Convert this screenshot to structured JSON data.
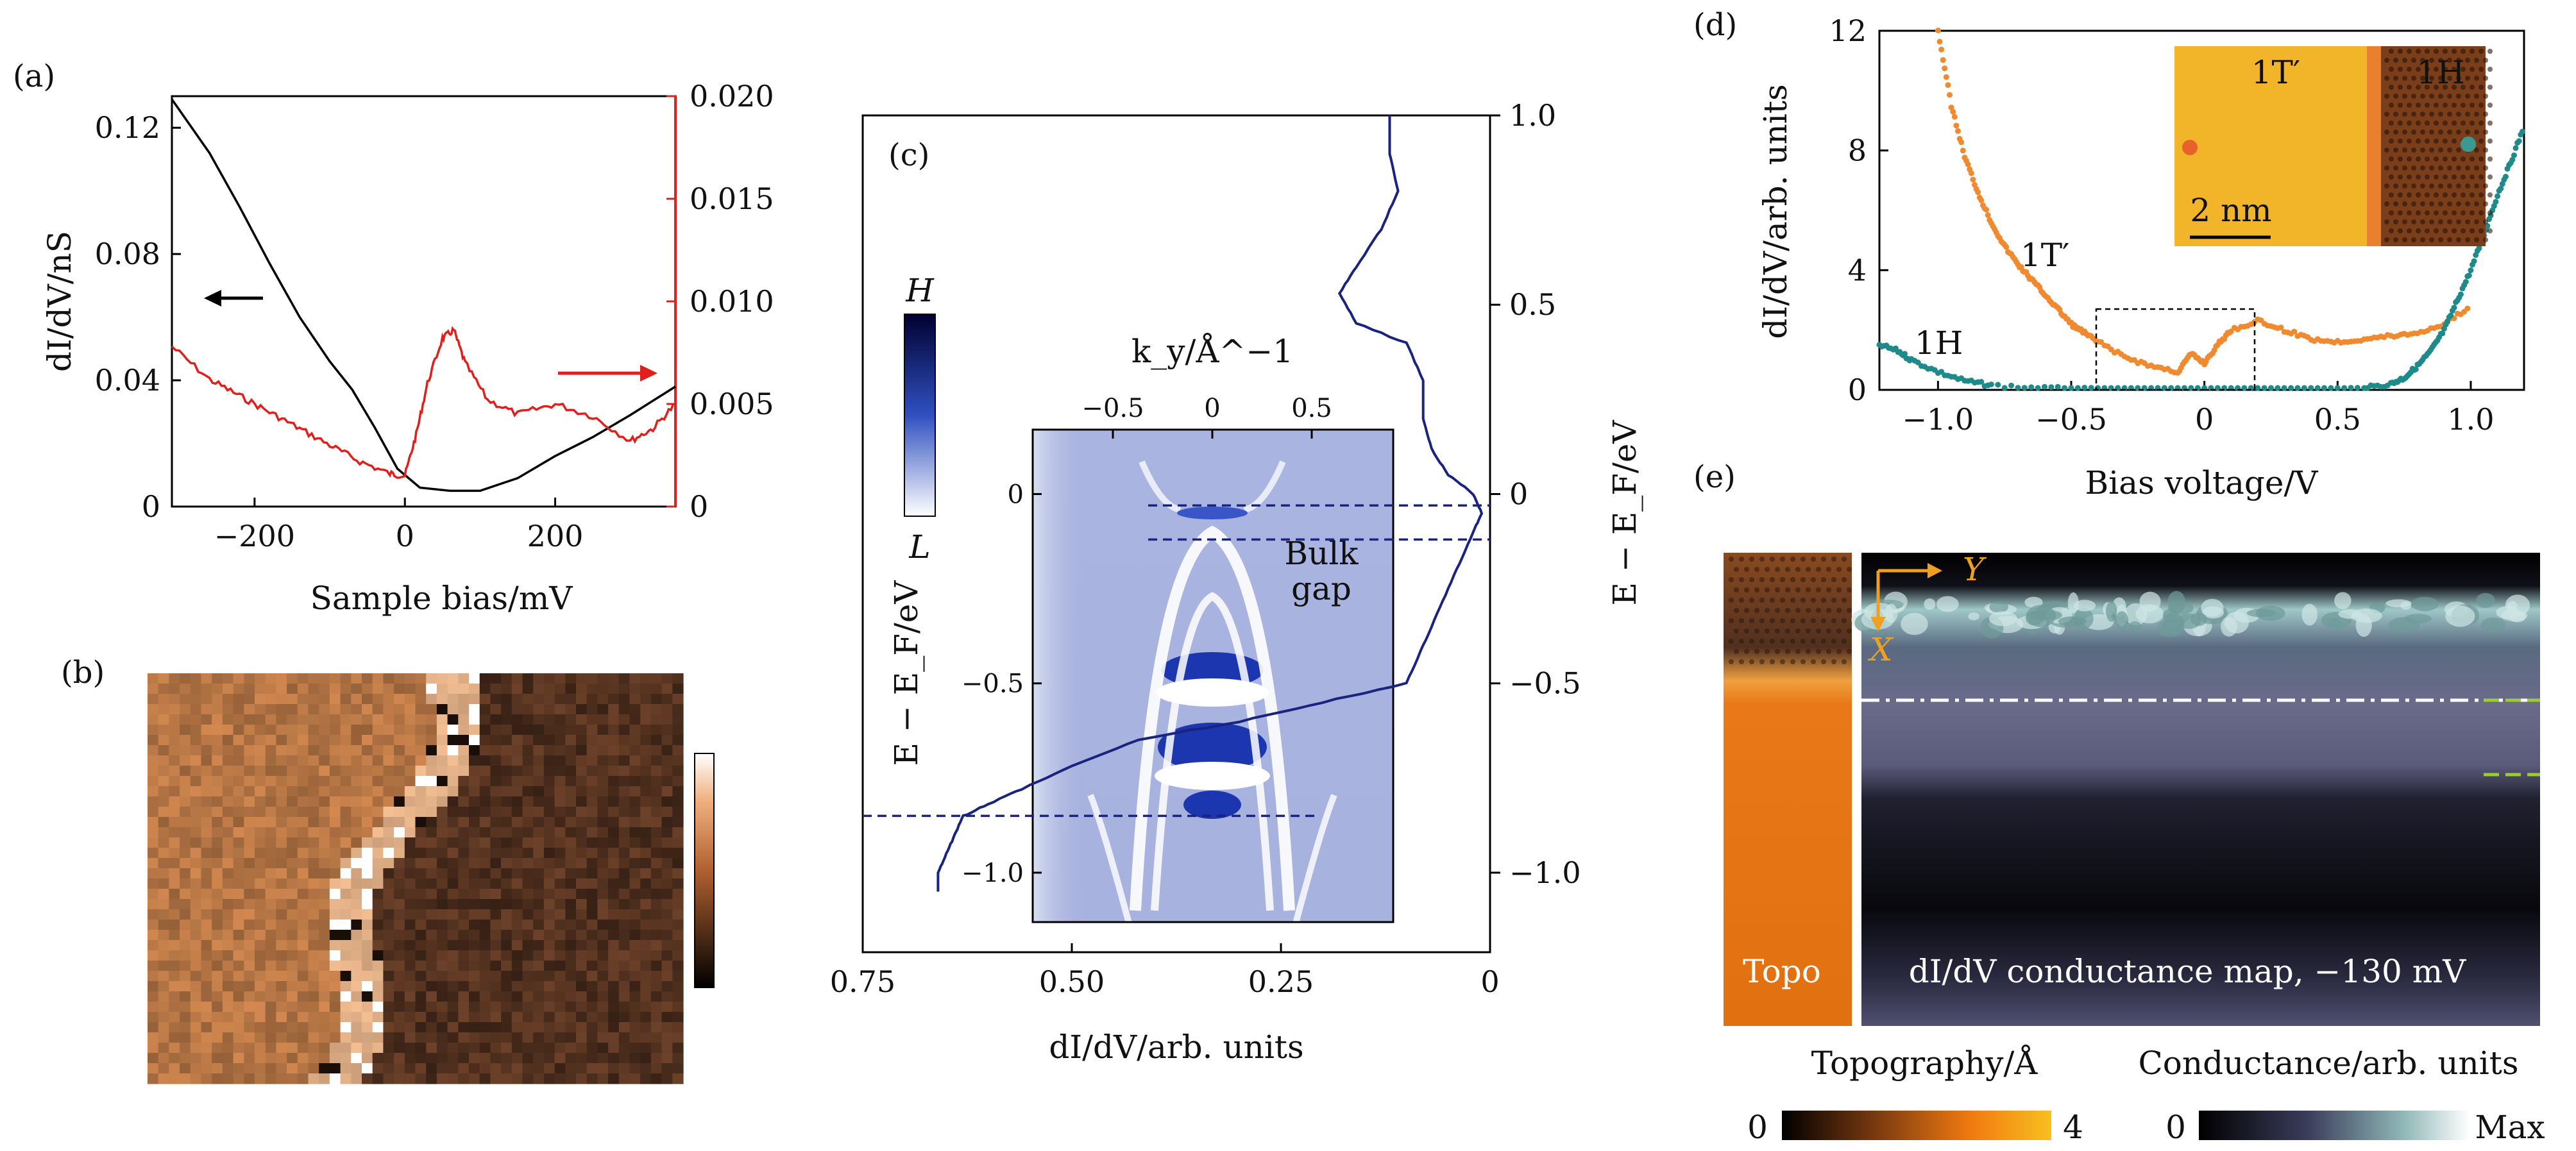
{
  "panels": {
    "a": "(a)",
    "b": "(b)",
    "c": "(c)",
    "d": "(d)",
    "e": "(e)"
  },
  "chart_data": [
    {
      "panel": "a",
      "type": "line",
      "xlabel": "Sample bias/mV",
      "ylabel_left": "dI/dV/nS",
      "xlim": [
        -310,
        360
      ],
      "ylim_left": [
        0,
        0.13
      ],
      "ylim_right": [
        0,
        0.02
      ],
      "xticks": [
        -200,
        0,
        200
      ],
      "yticks_left": [
        0,
        0.04,
        0.08,
        0.12
      ],
      "yticks_right": [
        0,
        0.005,
        0.01,
        0.015,
        0.02
      ],
      "xtick_labels": [
        "−200",
        "0",
        "200"
      ],
      "ytick_labels_left": [
        "0",
        "0.04",
        "0.08",
        "0.12"
      ],
      "ytick_labels_right": [
        "0",
        "0.005",
        "0.010",
        "0.015",
        "0.020"
      ],
      "series": [
        {
          "axis": "left",
          "color": "#000000",
          "x": [
            -310,
            -260,
            -220,
            -180,
            -140,
            -100,
            -70,
            -40,
            -10,
            20,
            60,
            100,
            150,
            200,
            250,
            300,
            360
          ],
          "y": [
            0.129,
            0.112,
            0.095,
            0.077,
            0.06,
            0.046,
            0.037,
            0.025,
            0.012,
            0.006,
            0.005,
            0.005,
            0.009,
            0.016,
            0.022,
            0.029,
            0.038
          ]
        },
        {
          "axis": "right",
          "color": "#e0201c",
          "x": [
            -310,
            -260,
            -220,
            -180,
            -140,
            -100,
            -60,
            -20,
            0,
            15,
            30,
            50,
            65,
            80,
            110,
            150,
            200,
            250,
            300,
            330,
            360
          ],
          "y": [
            0.0078,
            0.0062,
            0.0054,
            0.0046,
            0.0038,
            0.003,
            0.0022,
            0.0016,
            0.0015,
            0.0035,
            0.006,
            0.0082,
            0.0086,
            0.007,
            0.0052,
            0.0045,
            0.005,
            0.0044,
            0.0032,
            0.0038,
            0.005
          ]
        }
      ]
    },
    {
      "panel": "b",
      "type": "heatmap"
    },
    {
      "panel": "c",
      "type": "line",
      "xlabel": "dI/dV/arb. units",
      "ylabel_right": "E − E_F/eV",
      "xlim": [
        0.75,
        0
      ],
      "ylim": [
        -1.1,
        1.0
      ],
      "xticks": [
        0.75,
        0.5,
        0.25,
        0
      ],
      "xtick_labels": [
        "0.75",
        "0.50",
        "0.25",
        "0"
      ],
      "yticks": [
        -1.0,
        -0.5,
        0,
        0.5,
        1.0
      ],
      "ytick_labels": [
        "−1.0",
        "−0.5",
        "0",
        "0.5",
        "1.0"
      ],
      "colorbar_top": "H",
      "colorbar_bottom": "L",
      "inset": {
        "xlabel": "k_y/Å^−1",
        "ylabel": "E − E_F/eV",
        "xticks": [
          -0.5,
          0,
          0.5
        ],
        "xtick_labels": [
          "−0.5",
          "0",
          "0.5"
        ],
        "yticks": [
          0,
          -0.5,
          -1.0
        ],
        "ytick_labels": [
          "0",
          "−0.5",
          "−1.0"
        ],
        "annotation_line1": "Bulk",
        "annotation_line2": "gap"
      },
      "series": [
        {
          "color": "#1a237e",
          "x": [
            0.12,
            0.12,
            0.11,
            0.13,
            0.16,
            0.18,
            0.16,
            0.1,
            0.08,
            0.08,
            0.07,
            0.05,
            0.02,
            0.01,
            0.02,
            0.04,
            0.06,
            0.08,
            0.1,
            0.2,
            0.3,
            0.42,
            0.5,
            0.56,
            0.6,
            0.63,
            0.64,
            0.65,
            0.66,
            0.66,
            0.66
          ],
          "y": [
            1.0,
            0.9,
            0.8,
            0.7,
            0.6,
            0.53,
            0.45,
            0.4,
            0.3,
            0.2,
            0.12,
            0.05,
            0.0,
            -0.05,
            -0.1,
            -0.2,
            -0.3,
            -0.4,
            -0.5,
            -0.55,
            -0.6,
            -0.65,
            -0.72,
            -0.78,
            -0.82,
            -0.85,
            -0.9,
            -0.95,
            -1.0,
            -1.03,
            -1.05
          ]
        }
      ],
      "dashed_levels": [
        -0.03,
        -0.12,
        -0.85
      ]
    },
    {
      "panel": "d",
      "type": "scatter",
      "xlabel": "Bias voltage/V",
      "ylabel": "dI/dV/arb. units",
      "xlim": [
        -1.22,
        1.2
      ],
      "ylim": [
        0,
        12
      ],
      "xticks": [
        -1.0,
        -0.5,
        0,
        0.5,
        1.0
      ],
      "xtick_labels": [
        "−1.0",
        "−0.5",
        "0",
        "0.5",
        "1.0"
      ],
      "yticks": [
        0,
        4,
        8,
        12
      ],
      "ytick_labels": [
        "0",
        "4",
        "8",
        "12"
      ],
      "annotations": [
        "1T′",
        "1H"
      ],
      "inset_labels": [
        "1T′",
        "1H"
      ],
      "scale_bar": "2 nm",
      "series": [
        {
          "name": "1T′",
          "color": "#f08a30",
          "x": [
            -1.0,
            -0.95,
            -0.9,
            -0.85,
            -0.8,
            -0.75,
            -0.7,
            -0.65,
            -0.6,
            -0.55,
            -0.5,
            -0.45,
            -0.4,
            -0.3,
            -0.2,
            -0.1,
            -0.05,
            0.0,
            0.05,
            0.1,
            0.2,
            0.3,
            0.4,
            0.5,
            0.6,
            0.7,
            0.8,
            0.9,
            1.0
          ],
          "y": [
            12.0,
            9.5,
            7.8,
            6.6,
            5.6,
            4.8,
            4.2,
            3.7,
            3.2,
            2.7,
            2.2,
            1.9,
            1.6,
            1.1,
            0.8,
            0.6,
            1.2,
            0.9,
            1.5,
            2.0,
            2.3,
            2.0,
            1.7,
            1.6,
            1.7,
            1.8,
            1.9,
            2.2,
            2.8
          ]
        },
        {
          "name": "1H",
          "color": "#1f8a8a",
          "x": [
            -1.22,
            -1.15,
            -1.1,
            -1.0,
            -0.9,
            -0.8,
            -0.6,
            -0.4,
            -0.2,
            0.0,
            0.2,
            0.4,
            0.6,
            0.7,
            0.75,
            0.8,
            0.85,
            0.9,
            0.95,
            1.0,
            1.05,
            1.1,
            1.15,
            1.2
          ],
          "y": [
            1.5,
            1.3,
            1.0,
            0.6,
            0.3,
            0.15,
            0.05,
            0.0,
            0.0,
            0.0,
            0.0,
            0.0,
            0.05,
            0.2,
            0.4,
            0.8,
            1.3,
            2.0,
            3.0,
            4.0,
            5.2,
            6.5,
            7.6,
            8.8
          ]
        }
      ]
    },
    {
      "panel": "e",
      "type": "heatmap",
      "topo_label": "Topo",
      "map_label": "dI/dV conductance map, −130 mV",
      "axis_x": "X",
      "axis_y": "Y",
      "colorbar_topo": {
        "title": "Topography/Å",
        "min": "0",
        "max": "4"
      },
      "colorbar_cond": {
        "title": "Conductance/arb. units",
        "min": "0",
        "max": "Max"
      }
    }
  ]
}
